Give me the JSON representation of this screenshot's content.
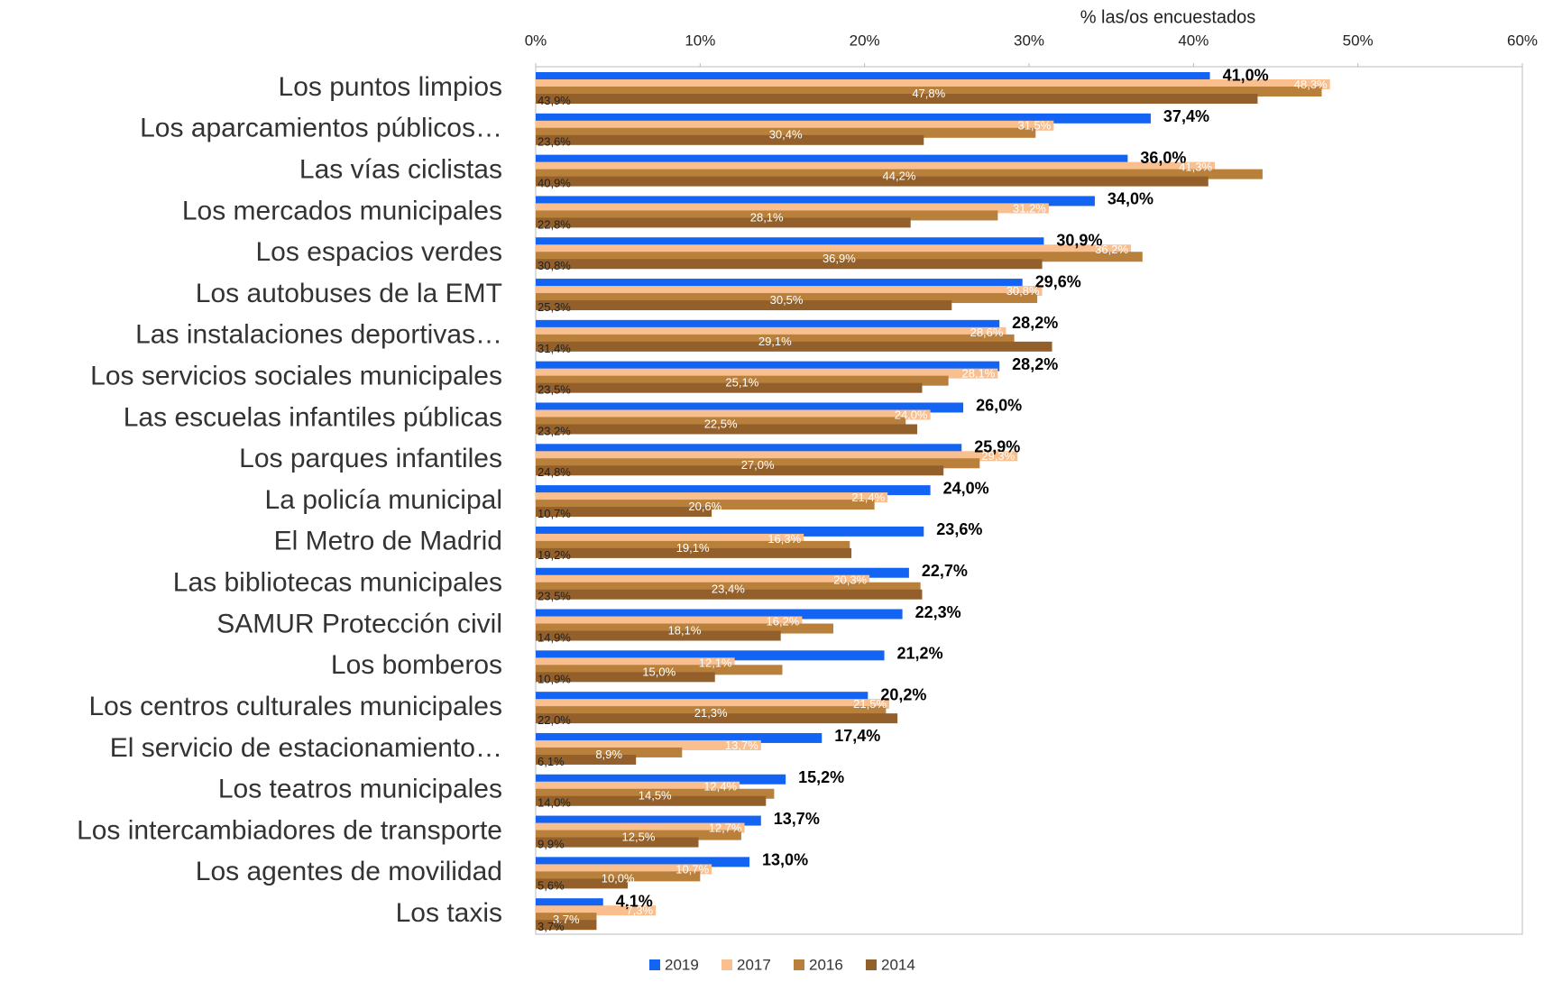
{
  "chart_data": {
    "type": "bar",
    "orientation": "horizontal",
    "x_label": "% las/os encuestados",
    "categories": [
      "Los puntos limpios",
      "Los aparcamientos públicos…",
      "Las vías ciclistas",
      "Los mercados municipales",
      "Los espacios verdes",
      "Los autobuses de la  EMT",
      "Las instalaciones deportivas…",
      "Los servicios sociales municipales",
      "Las escuelas infantiles públicas",
      "Los parques infantiles",
      "La policía municipal",
      "El Metro de Madrid",
      "Las bibliotecas municipales",
      "SAMUR Protección civil",
      "Los bomberos",
      "Los centros culturales municipales",
      "El servicio de estacionamiento…",
      "Los teatros municipales ",
      "Los intercambiadores de transporte",
      "Los agentes de movilidad",
      "Los taxis"
    ],
    "series": [
      {
        "name": "2019",
        "color": "#1464f4",
        "values": [
          41.0,
          37.4,
          36.0,
          34.0,
          30.9,
          29.6,
          28.2,
          28.2,
          26.0,
          25.9,
          24.0,
          23.6,
          22.7,
          22.3,
          21.2,
          20.2,
          17.4,
          15.2,
          13.7,
          13.0,
          4.1
        ],
        "value_labels": [
          "41,0%",
          "37,4%",
          "36,0%",
          "34,0%",
          "30,9%",
          "29,6%",
          "28,2%",
          "28,2%",
          "26,0%",
          "25,9%",
          "24,0%",
          "23,6%",
          "22,7%",
          "22,3%",
          "21,2%",
          "20,2%",
          "17,4%",
          "15,2%",
          "13,7%",
          "13,0%",
          "4,1%"
        ]
      },
      {
        "name": "2017",
        "color": "#f9bf8f",
        "values": [
          48.3,
          31.5,
          41.3,
          31.2,
          36.2,
          30.8,
          28.6,
          28.1,
          24.0,
          29.3,
          21.4,
          16.3,
          20.3,
          16.2,
          12.1,
          21.5,
          13.7,
          12.4,
          12.7,
          10.7,
          7.3
        ],
        "value_labels": [
          "48,3%",
          "31,5%",
          "41,3%",
          "31,2%",
          "36,2%",
          "30,8%",
          "28,6%",
          "28,1%",
          "24,0%",
          "29,3%",
          "21,4%",
          "16,3%",
          "20,3%",
          "16,2%",
          "12,1%",
          "21,5%",
          "13,7%",
          "12,4%",
          "12,7%",
          "10,7%",
          "7,3%"
        ]
      },
      {
        "name": "2016",
        "color": "#b8803a",
        "values": [
          47.8,
          30.4,
          44.2,
          28.1,
          36.9,
          30.5,
          29.1,
          25.1,
          22.5,
          27.0,
          20.6,
          19.1,
          23.4,
          18.1,
          15.0,
          21.3,
          8.9,
          14.5,
          12.5,
          10.0,
          3.7
        ],
        "value_labels": [
          "47,8%",
          "30,4%",
          "44,2%",
          "28,1%",
          "36,9%",
          "30,5%",
          "29,1%",
          "25,1%",
          "22,5%",
          "27,0%",
          "20,6%",
          "19,1%",
          "23,4%",
          "18,1%",
          "15,0%",
          "21,3%",
          "8,9%",
          "14,5%",
          "12,5%",
          "10,0%",
          "3,7%"
        ]
      },
      {
        "name": "2014",
        "color": "#93602c",
        "values": [
          43.9,
          23.6,
          40.9,
          22.8,
          30.8,
          25.3,
          31.4,
          23.5,
          23.2,
          24.8,
          10.7,
          19.2,
          23.5,
          14.9,
          10.9,
          22.0,
          6.1,
          14.0,
          9.9,
          5.6,
          3.7
        ],
        "value_labels": [
          "43,9%",
          "23,6%",
          "40,9%",
          "22,8%",
          "30,8%",
          "25,3%",
          "31,4%",
          "23,5%",
          "23,2%",
          "24,8%",
          "10,7%",
          "19,2%",
          "23,5%",
          "14,9%",
          "10,9%",
          "22,0%",
          "6,1%",
          "14,0%",
          "9,9%",
          "5,6%",
          "3,7%"
        ]
      }
    ],
    "xlim": [
      0,
      60
    ],
    "xticks": [
      {
        "value": 0,
        "label": "0%"
      },
      {
        "value": 10,
        "label": "10%"
      },
      {
        "value": 20,
        "label": "20%"
      },
      {
        "value": 30,
        "label": "30%"
      },
      {
        "value": 40,
        "label": "40%"
      },
      {
        "value": 50,
        "label": "50%"
      },
      {
        "value": 60,
        "label": "60%"
      }
    ],
    "legend": "bottom"
  }
}
